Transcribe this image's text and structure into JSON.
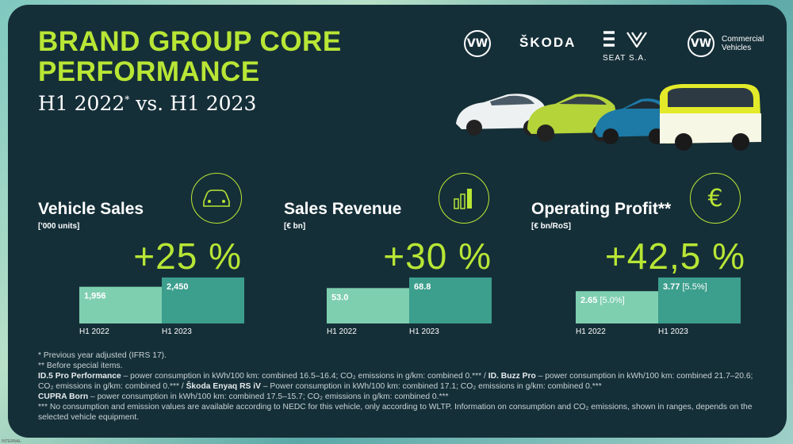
{
  "title_line1": "BRAND GROUP CORE",
  "title_line2": "PERFORMANCE",
  "subtitle_main": "H1 2022",
  "subtitle_sup": "*",
  "subtitle_rest": " vs. H1 2023",
  "brands": {
    "skoda": "ŠKODA",
    "seat_sa": "SEAT S.A.",
    "cv_line1": "Commercial",
    "cv_line2": "Vehicles"
  },
  "colors": {
    "panel": "#152f38",
    "accent": "#b8e635",
    "bar_2022": "#7ecfb0",
    "bar_2023": "#3c9e8c"
  },
  "chart_data": [
    {
      "type": "bar",
      "title": "Vehicle Sales",
      "unit": "['000 units]",
      "change": "+25 %",
      "categories": [
        "H1 2022",
        "H1 2023"
      ],
      "values": [
        1956,
        2450
      ],
      "value_labels": [
        "1,956",
        "2,450"
      ],
      "icon": "car-front-icon"
    },
    {
      "type": "bar",
      "title": "Sales Revenue",
      "unit": "[€ bn]",
      "change": "+30 %",
      "categories": [
        "H1 2022",
        "H1 2023"
      ],
      "values": [
        53.0,
        68.8
      ],
      "value_labels": [
        "53.0",
        "68.8"
      ],
      "icon": "bar-chart-icon"
    },
    {
      "type": "bar",
      "title": "Operating Profit**",
      "unit": "[€ bn/RoS]",
      "change": "+42,5 %",
      "categories": [
        "H1 2022",
        "H1 2023"
      ],
      "values": [
        2.65,
        3.77
      ],
      "value_labels": [
        "2.65",
        "3.77"
      ],
      "value_sub_labels": [
        "[5.0%]",
        "[5.5%]"
      ],
      "icon": "euro-icon"
    }
  ],
  "footnotes": {
    "f1": "* Previous year adjusted (IFRS 17).",
    "f2": "** Before special items.",
    "f3_b1": "ID.5 Pro Performance",
    "f3_t1": " – power consumption in kWh/100 km: combined 16.5–16.4; CO₂ emissions in g/km: combined 0.*** / ",
    "f3_b2": "ID. Buzz Pro",
    "f3_t2": " – power consumption in kWh/100 km: combined 21.7–20.6; CO₂ emissions in g/km: combined 0.*** / ",
    "f3_b3": "Škoda Enyaq RS iV",
    "f3_t3": " – Power consumption in kWh/100 km: combined 17.1; CO₂ emissions in g/km: combined 0.***",
    "f4_b1": "CUPRA Born",
    "f4_t1": " – power consumption in kWh/100 km: combined 17.5–15.7; CO₂ emissions in g/km: combined 0.***",
    "f5": "*** No consumption and emission values are available according to NEDC for this vehicle, only according to WLTP. Information on consumption and CO₂ emissions, shown in ranges, depends on the selected vehicle equipment."
  },
  "internal_label": "INTERNAL"
}
